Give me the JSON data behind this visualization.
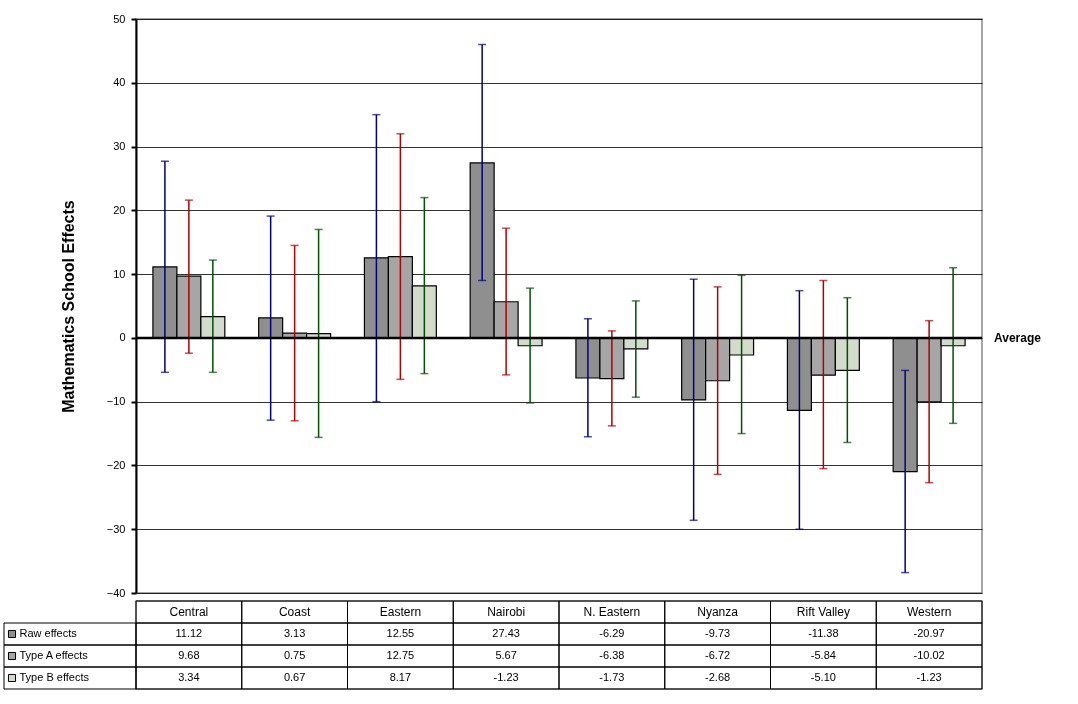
{
  "chart_data": {
    "type": "bar",
    "ylabel": "Mathematics School Effects",
    "categories": [
      "Central",
      "Coast",
      "Eastern",
      "Nairobi",
      "N. Eastern",
      "Nyanza",
      "Rift Valley",
      "Western"
    ],
    "series": [
      {
        "name": "Raw effects",
        "color": "#8f8f8f",
        "values": [
          11.12,
          3.13,
          12.55,
          27.43,
          -6.29,
          -9.73,
          -11.38,
          -20.97
        ],
        "value_labels": [
          "11.12",
          "3.13",
          "12.55",
          "27.43",
          "-6.29",
          "-9.73",
          "-11.38",
          "-20.97"
        ],
        "errors": [
          [
            -5.4,
            27.7
          ],
          [
            -12.9,
            19.1
          ],
          [
            -10,
            35
          ],
          [
            9,
            46
          ],
          [
            -15.5,
            3
          ],
          [
            -28.6,
            9.2
          ],
          [
            -30,
            7.4
          ],
          [
            -36.8,
            -5.1
          ]
        ]
      },
      {
        "name": "Type A effects",
        "color": "#a6a6a6",
        "values": [
          9.68,
          0.75,
          12.75,
          5.67,
          -6.38,
          -6.72,
          -5.84,
          -10.02
        ],
        "value_labels": [
          "9.68",
          "0.75",
          "12.75",
          "5.67",
          "-6.38",
          "-6.72",
          "-5.84",
          "-10.02"
        ],
        "errors": [
          [
            -2.4,
            21.6
          ],
          [
            -13,
            14.5
          ],
          [
            -6.5,
            32
          ],
          [
            -5.8,
            17.2
          ],
          [
            -13.8,
            1.1
          ],
          [
            -21.4,
            8
          ],
          [
            -20.5,
            9
          ],
          [
            -22.7,
            2.7
          ]
        ]
      },
      {
        "name": "Type B effects",
        "color": "#d3dbcd",
        "values": [
          3.34,
          0.67,
          8.17,
          -1.23,
          -1.73,
          -2.68,
          -5.1,
          -1.23
        ],
        "value_labels": [
          "3.34",
          "0.67",
          "8.17",
          "-1.23",
          "-1.73",
          "-2.68",
          "-5.10",
          "-1.23"
        ],
        "errors": [
          [
            -5.4,
            12.2
          ],
          [
            -15.6,
            17
          ],
          [
            -5.6,
            22
          ],
          [
            -10.2,
            7.8
          ],
          [
            -9.3,
            5.8
          ],
          [
            -15,
            9.8
          ],
          [
            -16.4,
            6.3
          ],
          [
            -13.4,
            11
          ]
        ]
      }
    ],
    "ylim": [
      -40,
      50
    ],
    "yticks": [
      -40,
      -30,
      -20,
      -10,
      0,
      10,
      20,
      30,
      40,
      50
    ],
    "grid": "y",
    "ref_lines": [
      {
        "axis": "y",
        "value": 0,
        "label": "Average"
      }
    ],
    "legend": "bottom left"
  }
}
